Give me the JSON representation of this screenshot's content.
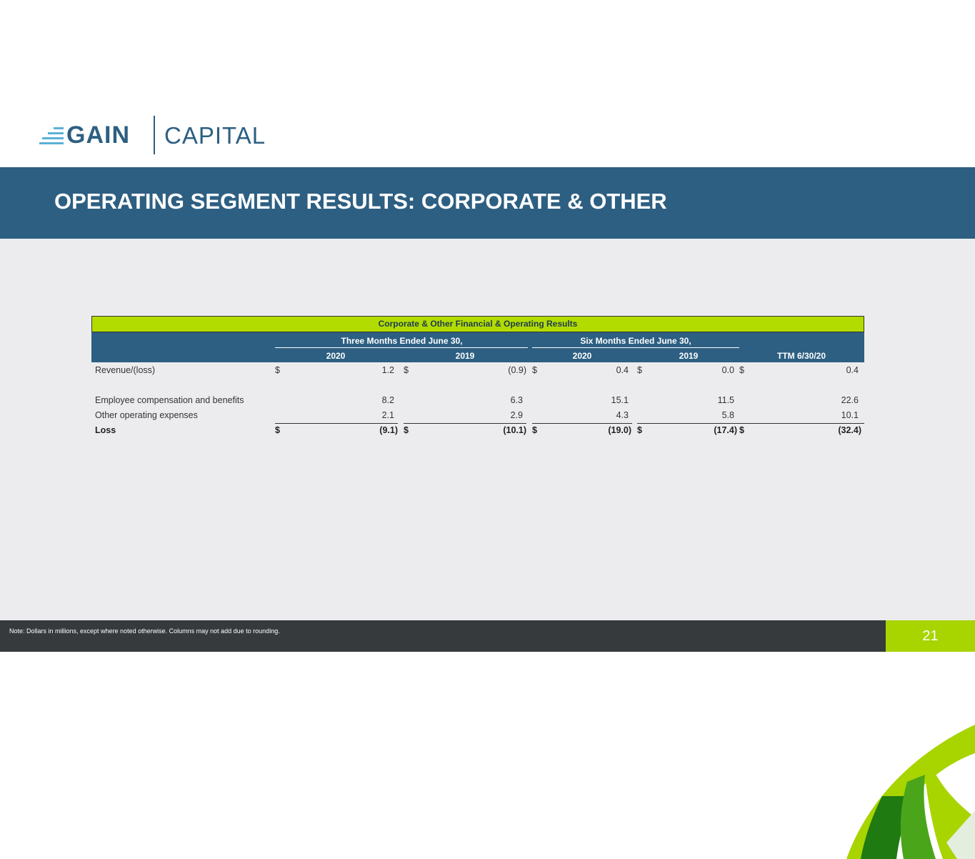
{
  "logo": {
    "brand_left": "GAIN",
    "brand_right": "CAPITAL"
  },
  "title": "OPERATING SEGMENT RESULTS: CORPORATE & OTHER",
  "table": {
    "caption": "Corporate & Other Financial & Operating Results",
    "groups": [
      "Three Months Ended June 30,",
      "Six Months Ended June 30,"
    ],
    "years": [
      "2020",
      "2019",
      "2020",
      "2019",
      "TTM 6/30/20"
    ],
    "rows": [
      {
        "label": "Revenue/(loss)",
        "dollar": "$",
        "values": [
          "1.2",
          "(0.9)",
          "0.4",
          "0.0",
          "0.4"
        ]
      },
      {
        "label": "Employee compensation and benefits",
        "values": [
          "8.2",
          "6.3",
          "15.1",
          "11.5",
          "22.6"
        ]
      },
      {
        "label": "Other operating expenses",
        "values": [
          "2.1",
          "2.9",
          "4.3",
          "5.8",
          "10.1"
        ]
      },
      {
        "label": "Loss",
        "dollar": "$",
        "values": [
          "(9.1)",
          "(10.1)",
          "(19.0)",
          "(17.4)",
          "(32.4)"
        ]
      }
    ]
  },
  "footer": {
    "note": "Note:  Dollars in millions, except where noted otherwise.  Columns may not add due to rounding.",
    "page_number": "21"
  },
  "colors": {
    "brand_blue": "#2d5f82",
    "accent_green": "#b2dc00",
    "footer_dark": "#363a3c",
    "content_gray": "#ececef"
  }
}
